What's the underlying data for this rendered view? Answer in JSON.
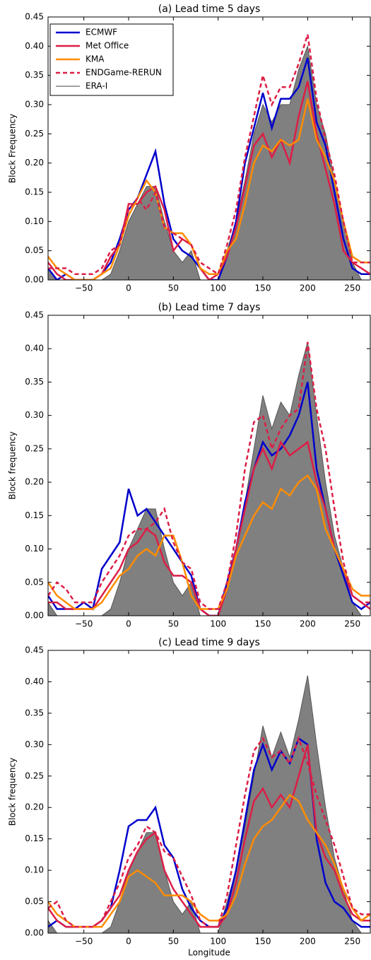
{
  "chart_data": [
    {
      "type": "line",
      "title": "(a) Lead time 5 days",
      "ylabel": "Block Frequency",
      "legend": true,
      "legend_loc": "upper left",
      "xlim": [
        -90,
        270
      ],
      "xticks": [
        {
          "value": -50,
          "label": "−50"
        },
        0,
        50,
        100,
        150,
        200,
        250
      ],
      "ylim": [
        0,
        0.45
      ],
      "yticks": [
        {
          "value": 0,
          "label": "0.00"
        },
        {
          "value": 0.05,
          "label": "0.05"
        },
        {
          "value": 0.1,
          "label": "0.10"
        },
        {
          "value": 0.15,
          "label": "0.15"
        },
        {
          "value": 0.2,
          "label": "0.20"
        },
        {
          "value": 0.25,
          "label": "0.25"
        },
        {
          "value": 0.3,
          "label": "0.30"
        },
        {
          "value": 0.35,
          "label": "0.35"
        },
        {
          "value": 0.4,
          "label": "0.40"
        },
        {
          "value": 0.45,
          "label": "0.45"
        }
      ],
      "x": [
        -90,
        -80,
        -70,
        -60,
        -50,
        -40,
        -30,
        -20,
        -10,
        0,
        10,
        20,
        30,
        40,
        50,
        60,
        70,
        80,
        90,
        100,
        110,
        120,
        130,
        140,
        150,
        160,
        170,
        180,
        190,
        200,
        210,
        220,
        230,
        240,
        250,
        260,
        270
      ],
      "series": [
        {
          "name": "ECMWF",
          "color": "#0000cc",
          "values": [
            0.02,
            0,
            0.01,
            0,
            0,
            0,
            0.01,
            0.03,
            0.07,
            0.12,
            0.14,
            0.18,
            0.22,
            0.13,
            0.07,
            0.05,
            0.04,
            0.02,
            0,
            0,
            0.04,
            0.1,
            0.2,
            0.26,
            0.32,
            0.26,
            0.31,
            0.31,
            0.33,
            0.38,
            0.27,
            0.23,
            0.15,
            0.07,
            0.02,
            0.01,
            0.01
          ]
        },
        {
          "name": "Met Office",
          "color": "#dc1e46",
          "values": [
            0.03,
            0.01,
            0,
            0,
            0,
            0,
            0.01,
            0.04,
            0.06,
            0.13,
            0.13,
            0.15,
            0.16,
            0.12,
            0.05,
            0.07,
            0.06,
            0.02,
            0,
            0.01,
            0.04,
            0.09,
            0.16,
            0.23,
            0.25,
            0.21,
            0.24,
            0.2,
            0.28,
            0.34,
            0.25,
            0.19,
            0.13,
            0.05,
            0.03,
            0.02,
            0.01
          ]
        },
        {
          "name": "KMA",
          "color": "#ff8c00",
          "values": [
            0.04,
            0.02,
            0.01,
            0,
            0,
            0,
            0.01,
            0.02,
            0.06,
            0.11,
            0.14,
            0.17,
            0.15,
            0.09,
            0.08,
            0.08,
            0.06,
            0.02,
            0.01,
            0.01,
            0.05,
            0.07,
            0.13,
            0.2,
            0.23,
            0.22,
            0.24,
            0.23,
            0.24,
            0.31,
            0.24,
            0.21,
            0.17,
            0.1,
            0.04,
            0.03,
            0.03
          ]
        },
        {
          "name": "ENDGame-RERUN",
          "color": "#dc1e46",
          "dash": true,
          "values": [
            0.02,
            0.02,
            0.02,
            0.01,
            0.01,
            0.01,
            0.02,
            0.05,
            0.06,
            0.12,
            0.14,
            0.12,
            0.15,
            0.09,
            0.08,
            0.07,
            0.06,
            0.03,
            0.02,
            0.01,
            0.06,
            0.12,
            0.21,
            0.28,
            0.35,
            0.3,
            0.33,
            0.33,
            0.37,
            0.42,
            0.31,
            0.24,
            0.18,
            0.1,
            0.03,
            0.03,
            0.03
          ]
        },
        {
          "name": "ERA-I",
          "color": "#555555",
          "fill": "#808080",
          "values": [
            0.02,
            0,
            0,
            0,
            0,
            0,
            0,
            0.01,
            0.05,
            0.1,
            0.13,
            0.16,
            0.16,
            0.1,
            0.05,
            0.03,
            0.05,
            0,
            0,
            0,
            0.05,
            0.1,
            0.17,
            0.25,
            0.3,
            0.27,
            0.3,
            0.3,
            0.36,
            0.4,
            0.3,
            0.25,
            0.17,
            0.1,
            0.03,
            0,
            0
          ]
        }
      ]
    },
    {
      "type": "line",
      "title": "(b) Lead time 7 days",
      "ylabel": "Block frequency",
      "legend": false,
      "xlim": [
        -90,
        270
      ],
      "xticks": [
        {
          "value": -50,
          "label": "−50"
        },
        0,
        50,
        100,
        150,
        200,
        250
      ],
      "ylim": [
        0,
        0.45
      ],
      "yticks": [
        {
          "value": 0,
          "label": "0.00"
        },
        {
          "value": 0.05,
          "label": "0.05"
        },
        {
          "value": 0.1,
          "label": "0.10"
        },
        {
          "value": 0.15,
          "label": "0.15"
        },
        {
          "value": 0.2,
          "label": "0.20"
        },
        {
          "value": 0.25,
          "label": "0.25"
        },
        {
          "value": 0.3,
          "label": "0.30"
        },
        {
          "value": 0.35,
          "label": "0.35"
        },
        {
          "value": 0.4,
          "label": "0.40"
        },
        {
          "value": 0.45,
          "label": "0.45"
        }
      ],
      "x": [
        -90,
        -80,
        -70,
        -60,
        -50,
        -40,
        -30,
        -20,
        -10,
        0,
        10,
        20,
        30,
        40,
        50,
        60,
        70,
        80,
        90,
        100,
        110,
        120,
        130,
        140,
        150,
        160,
        170,
        180,
        190,
        200,
        210,
        220,
        230,
        240,
        250,
        260,
        270
      ],
      "series": [
        {
          "color": "#0000cc",
          "values": [
            0.03,
            0.01,
            0.01,
            0.01,
            0.02,
            0.01,
            0.07,
            0.09,
            0.11,
            0.19,
            0.15,
            0.16,
            0.14,
            0.12,
            0.1,
            0.08,
            0.06,
            0.01,
            0,
            0,
            0.05,
            0.1,
            0.17,
            0.22,
            0.26,
            0.24,
            0.25,
            0.27,
            0.3,
            0.35,
            0.22,
            0.16,
            0.1,
            0.06,
            0.02,
            0.01,
            0.02
          ]
        },
        {
          "color": "#dc1e46",
          "values": [
            0.02,
            0.02,
            0.01,
            0.01,
            0.01,
            0.01,
            0.03,
            0.05,
            0.07,
            0.1,
            0.11,
            0.13,
            0.12,
            0.08,
            0.06,
            0.06,
            0.05,
            0.01,
            0,
            0,
            0.04,
            0.1,
            0.16,
            0.22,
            0.25,
            0.22,
            0.26,
            0.24,
            0.25,
            0.26,
            0.2,
            0.16,
            0.1,
            0.07,
            0.03,
            0.02,
            0.01
          ]
        },
        {
          "color": "#ff8c00",
          "values": [
            0.05,
            0.03,
            0.02,
            0.01,
            0.01,
            0.01,
            0.02,
            0.04,
            0.06,
            0.07,
            0.09,
            0.1,
            0.09,
            0.12,
            0.12,
            0.08,
            0.03,
            0.01,
            0.01,
            0.01,
            0.04,
            0.09,
            0.12,
            0.15,
            0.17,
            0.16,
            0.19,
            0.18,
            0.2,
            0.21,
            0.19,
            0.13,
            0.1,
            0.07,
            0.04,
            0.03,
            0.03
          ]
        },
        {
          "color": "#dc1e46",
          "dash": true,
          "values": [
            0.03,
            0.05,
            0.04,
            0.02,
            0.02,
            0.02,
            0.05,
            0.07,
            0.09,
            0.12,
            0.13,
            0.13,
            0.14,
            0.16,
            0.11,
            0.08,
            0.07,
            0.02,
            0.01,
            0.01,
            0.05,
            0.12,
            0.22,
            0.29,
            0.3,
            0.25,
            0.28,
            0.3,
            0.31,
            0.41,
            0.31,
            0.25,
            0.16,
            0.08,
            0.03,
            0.02,
            0.02
          ]
        },
        {
          "color": "#555555",
          "fill": "#808080",
          "values": [
            0.02,
            0,
            0,
            0,
            0,
            0,
            0,
            0.01,
            0.05,
            0.1,
            0.13,
            0.16,
            0.16,
            0.1,
            0.05,
            0.03,
            0.05,
            0,
            0,
            0,
            0.05,
            0.1,
            0.17,
            0.25,
            0.33,
            0.28,
            0.32,
            0.3,
            0.36,
            0.41,
            0.3,
            0.2,
            0.12,
            0.07,
            0.02,
            0,
            0
          ]
        }
      ]
    },
    {
      "type": "line",
      "title": "(c) Lead time 9 days",
      "ylabel": "Block frequency",
      "xlabel": "Longitude",
      "legend": false,
      "xlim": [
        -90,
        270
      ],
      "xticks": [
        {
          "value": -50,
          "label": "−50"
        },
        0,
        50,
        100,
        150,
        200,
        250
      ],
      "ylim": [
        0,
        0.45
      ],
      "yticks": [
        {
          "value": 0,
          "label": "0.00"
        },
        {
          "value": 0.05,
          "label": "0.05"
        },
        {
          "value": 0.1,
          "label": "0.10"
        },
        {
          "value": 0.15,
          "label": "0.15"
        },
        {
          "value": 0.2,
          "label": "0.20"
        },
        {
          "value": 0.25,
          "label": "0.25"
        },
        {
          "value": 0.3,
          "label": "0.30"
        },
        {
          "value": 0.35,
          "label": "0.35"
        },
        {
          "value": 0.4,
          "label": "0.40"
        },
        {
          "value": 0.45,
          "label": "0.45"
        }
      ],
      "x": [
        -90,
        -80,
        -70,
        -60,
        -50,
        -40,
        -30,
        -20,
        -10,
        0,
        10,
        20,
        30,
        40,
        50,
        60,
        70,
        80,
        90,
        100,
        110,
        120,
        130,
        140,
        150,
        160,
        170,
        180,
        190,
        200,
        210,
        220,
        230,
        240,
        250,
        260,
        270
      ],
      "series": [
        {
          "color": "#0000cc",
          "values": [
            0.01,
            0.02,
            0.01,
            0.01,
            0.01,
            0.01,
            0.02,
            0.04,
            0.1,
            0.17,
            0.18,
            0.18,
            0.2,
            0.14,
            0.12,
            0.07,
            0.04,
            0.02,
            0.01,
            0.01,
            0.04,
            0.1,
            0.18,
            0.26,
            0.3,
            0.26,
            0.29,
            0.27,
            0.31,
            0.3,
            0.15,
            0.08,
            0.05,
            0.04,
            0.02,
            0.01,
            0.01
          ]
        },
        {
          "color": "#dc1e46",
          "values": [
            0.04,
            0.02,
            0.01,
            0.01,
            0.01,
            0.01,
            0.02,
            0.04,
            0.06,
            0.1,
            0.13,
            0.15,
            0.16,
            0.1,
            0.07,
            0.05,
            0.03,
            0.01,
            0.01,
            0.01,
            0.03,
            0.08,
            0.15,
            0.21,
            0.23,
            0.2,
            0.22,
            0.2,
            0.25,
            0.3,
            0.16,
            0.12,
            0.1,
            0.06,
            0.03,
            0.02,
            0.02
          ]
        },
        {
          "color": "#ff8c00",
          "values": [
            0.05,
            0.03,
            0.02,
            0.01,
            0.01,
            0.01,
            0.01,
            0.03,
            0.05,
            0.09,
            0.1,
            0.09,
            0.08,
            0.06,
            0.06,
            0.06,
            0.05,
            0.03,
            0.02,
            0.02,
            0.03,
            0.06,
            0.11,
            0.15,
            0.17,
            0.18,
            0.2,
            0.22,
            0.21,
            0.18,
            0.16,
            0.14,
            0.11,
            0.07,
            0.04,
            0.02,
            0.03
          ]
        },
        {
          "color": "#dc1e46",
          "dash": true,
          "values": [
            0.04,
            0.05,
            0.02,
            0.01,
            0.01,
            0.01,
            0.02,
            0.05,
            0.08,
            0.12,
            0.14,
            0.17,
            0.16,
            0.13,
            0.12,
            0.09,
            0.06,
            0.02,
            0.01,
            0.01,
            0.06,
            0.14,
            0.22,
            0.29,
            0.31,
            0.28,
            0.29,
            0.27,
            0.31,
            0.27,
            0.22,
            0.18,
            0.14,
            0.09,
            0.04,
            0.03,
            0.03
          ]
        },
        {
          "color": "#555555",
          "fill": "#808080",
          "values": [
            0.02,
            0,
            0,
            0,
            0,
            0,
            0,
            0.01,
            0.05,
            0.1,
            0.13,
            0.16,
            0.16,
            0.1,
            0.05,
            0.03,
            0.05,
            0,
            0,
            0,
            0.05,
            0.1,
            0.17,
            0.25,
            0.33,
            0.28,
            0.32,
            0.28,
            0.34,
            0.41,
            0.3,
            0.2,
            0.12,
            0.07,
            0.02,
            0,
            0
          ]
        }
      ]
    }
  ]
}
